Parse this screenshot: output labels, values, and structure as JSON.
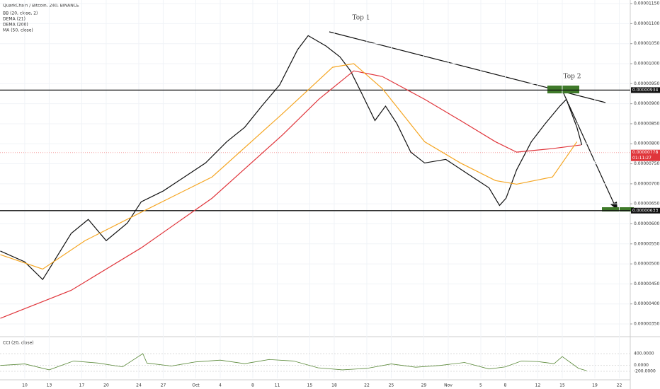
{
  "chart_data": {
    "type": "line",
    "title": "QuarkChain / Bitcoin, 240, BINANCE",
    "indicators": [
      "BB (20, close, 2)"
    ],
    "xlim": [
      -3.04,
      74.35
    ],
    "xticks": [
      {
        "value": 0,
        "label": "10"
      },
      {
        "value": 3,
        "label": "13"
      },
      {
        "value": 7,
        "label": "17"
      },
      {
        "value": 10,
        "label": "20"
      },
      {
        "value": 14,
        "label": "24"
      },
      {
        "value": 17,
        "label": "27"
      },
      {
        "value": 21,
        "label": "Oct"
      },
      {
        "value": 24,
        "label": "4"
      },
      {
        "value": 28,
        "label": "8"
      },
      {
        "value": 31,
        "label": "11"
      },
      {
        "value": 35,
        "label": "15"
      },
      {
        "value": 38,
        "label": "18"
      },
      {
        "value": 42,
        "label": "22"
      },
      {
        "value": 45,
        "label": "25"
      },
      {
        "value": 49,
        "label": "29"
      },
      {
        "value": 52,
        "label": "Nov"
      },
      {
        "value": 56,
        "label": "5"
      },
      {
        "value": 59,
        "label": "8"
      },
      {
        "value": 63,
        "label": "12"
      },
      {
        "value": 66,
        "label": "15"
      },
      {
        "value": 70,
        "label": "19"
      },
      {
        "value": 73,
        "label": "22"
      }
    ],
    "ylim": [
      3.2e-06,
      1.159e-05
    ],
    "yticks": [
      {
        "value": 1.15e-05,
        "label": "0.00001150"
      },
      {
        "value": 1.1e-05,
        "label": "0.00001100"
      },
      {
        "value": 1.05e-05,
        "label": "0.00001050"
      },
      {
        "value": 1e-05,
        "label": "0.00001000"
      },
      {
        "value": 9.5e-06,
        "label": "0.00000950"
      },
      {
        "value": 9e-06,
        "label": "0.00000900"
      },
      {
        "value": 8.5e-06,
        "label": "0.00000850"
      },
      {
        "value": 8e-06,
        "label": "0.00000800"
      },
      {
        "value": 7.5e-06,
        "label": "0.00000750"
      },
      {
        "value": 7e-06,
        "label": "0.00000700"
      },
      {
        "value": 6.5e-06,
        "label": "0.00000650"
      },
      {
        "value": 6e-06,
        "label": "0.00000600"
      },
      {
        "value": 5.5e-06,
        "label": "0.00000550"
      },
      {
        "value": 5e-06,
        "label": "0.00000500"
      },
      {
        "value": 4.5e-06,
        "label": "0.00000450"
      },
      {
        "value": 4e-06,
        "label": "0.00000400"
      },
      {
        "value": 3.5e-06,
        "label": "0.00000350"
      }
    ],
    "series": [
      {
        "name": "DEMA (21)",
        "color": "#111111",
        "x": [
          -3.0,
          0,
          2.2,
          3.0,
          5.7,
          7.8,
          10,
          12.6,
          14.3,
          17,
          19.6,
          22.2,
          24.8,
          27,
          29.1,
          31.3,
          33.5,
          34.8,
          37,
          38.7,
          40,
          41.3,
          43,
          44.3,
          45.7,
          47.4,
          49.1,
          51.7,
          54.3,
          57,
          58.3,
          59.1,
          60.4,
          62.2,
          63.9,
          65.7,
          66.5,
          67.8,
          68.4
        ],
        "values": [
          5.32e-06,
          5.05e-06,
          4.61e-06,
          4.87e-06,
          5.76e-06,
          6.11e-06,
          5.58e-06,
          6.02e-06,
          6.55e-06,
          6.82e-06,
          7.17e-06,
          7.52e-06,
          8.05e-06,
          8.41e-06,
          8.94e-06,
          9.47e-06,
          1.035e-05,
          1.07e-05,
          1.044e-05,
          1.017e-05,
          9.82e-06,
          9.29e-06,
          8.58e-06,
          8.94e-06,
          8.5e-06,
          7.79e-06,
          7.52e-06,
          7.61e-06,
          7.26e-06,
          6.9e-06,
          6.46e-06,
          6.64e-06,
          7.35e-06,
          8.05e-06,
          8.5e-06,
          8.94e-06,
          9.11e-06,
          8.41e-06,
          7.97e-06
        ]
      },
      {
        "name": "DEMA (200)",
        "color": "#e0353b",
        "x": [
          -3.0,
          5.7,
          14.3,
          23.0,
          31.7,
          36.1,
          40.4,
          43.9,
          49.1,
          53.5,
          57.8,
          60.4,
          64.8,
          68.3
        ],
        "values": [
          3.64e-06,
          4.34e-06,
          5.4e-06,
          6.64e-06,
          8.23e-06,
          9.11e-06,
          9.82e-06,
          9.68e-06,
          9.11e-06,
          8.58e-06,
          8.05e-06,
          7.79e-06,
          7.88e-06,
          7.97e-06
        ]
      },
      {
        "name": "MA (50, close)",
        "color": "#f5a623",
        "x": [
          -3.0,
          2.2,
          7.4,
          14.3,
          23.0,
          31.7,
          37.8,
          40.4,
          43.9,
          49.1,
          53.5,
          57.8,
          60.4,
          64.8,
          67.8
        ],
        "values": [
          5.23e-06,
          4.87e-06,
          5.58e-06,
          6.29e-06,
          7.17e-06,
          8.76e-06,
          9.91e-06,
          1e-05,
          9.38e-06,
          8.05e-06,
          7.52e-06,
          7.08e-06,
          6.99e-06,
          7.17e-06,
          8.05e-06
        ]
      }
    ],
    "levels": [
      {
        "value": 9.34e-06,
        "label": "0.00000934"
      },
      {
        "value": 6.33e-06,
        "label": "0.00000633"
      }
    ],
    "last_price": {
      "value": 7.78e-06,
      "label": "0.00000778",
      "countdown": "01:11:27"
    },
    "annotations": [
      "Top 1",
      "Top 2"
    ],
    "cci": {
      "name": "CCI (20, close)",
      "color": "#5b8a3a",
      "ylim": [
        -440,
        928
      ],
      "yticks": [
        {
          "value": 400,
          "label": "400.0000"
        },
        {
          "value": 0,
          "label": "0.0000"
        },
        {
          "value": -200,
          "label": "-200.0000"
        }
      ],
      "x": [
        -3,
        0,
        3,
        6,
        9,
        12,
        14.5,
        15,
        18,
        21,
        24,
        27,
        30,
        33,
        36,
        39,
        42,
        45,
        48,
        51,
        54,
        57,
        59,
        61,
        63,
        65,
        66,
        67,
        68,
        69
      ],
      "values": [
        0,
        50,
        -150,
        150,
        80,
        -50,
        400,
        80,
        -20,
        120,
        180,
        60,
        200,
        150,
        -80,
        -150,
        -100,
        50,
        -60,
        0,
        100,
        -120,
        -50,
        150,
        130,
        60,
        300,
        100,
        -100,
        -180
      ]
    }
  }
}
